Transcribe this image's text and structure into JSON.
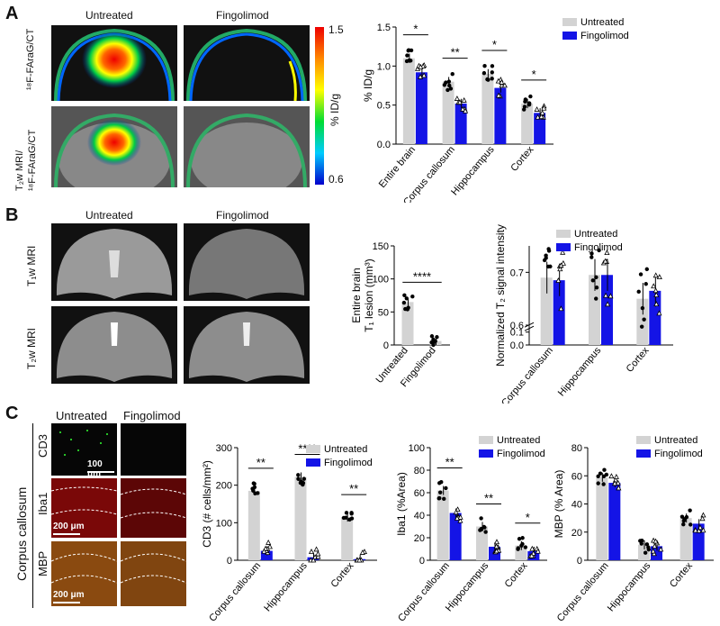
{
  "panels": {
    "a": "A",
    "b": "B",
    "c": "C"
  },
  "rowA": {
    "col_untreated": "Untreated",
    "col_fingolimod": "Fingolimod",
    "row1_label": "¹⁸F-FAraG/CT",
    "row2_label_1": "T₂w MRI/",
    "row2_label_2": "¹⁸F-FAraG/CT",
    "colorbar_max": "1.5",
    "colorbar_min": "0.6",
    "colorbar_unit": "% ID/g"
  },
  "rowB": {
    "col_untreated": "Untreated",
    "col_fingolimod": "Fingolimod",
    "row1_label": "T₁w MRI",
    "row2_label": "T₂w MRI"
  },
  "rowC": {
    "col_untreated": "Untreated",
    "col_fingolimod": "Fingolimod",
    "section_label": "Corpus callosum",
    "row1_label": "CD3",
    "row2_label": "Iba1",
    "row3_label": "MBP",
    "scale1": "100 μm",
    "scale2": "200 μm",
    "scale3": "200 μm"
  },
  "chart_data": [
    {
      "id": "A",
      "type": "bar",
      "categories": [
        "Entire brain",
        "Corpus callosum",
        "Hippocampus",
        "Cortex"
      ],
      "series": [
        {
          "name": "Untreated",
          "values": [
            1.1,
            0.8,
            0.9,
            0.52
          ],
          "color": "#d3d3d3"
        },
        {
          "name": "Fingolimod",
          "values": [
            0.92,
            0.52,
            0.72,
            0.4
          ],
          "color": "#1414e6"
        }
      ],
      "ylabel": "% ID/g",
      "ylim": [
        0,
        1.5
      ],
      "yticks": [
        "0.0",
        "0.5",
        "1.0",
        "1.5"
      ],
      "significance": [
        "*",
        "**",
        "*",
        "*"
      ],
      "legend": "top-right"
    },
    {
      "id": "B1",
      "type": "bar",
      "categories": [
        "Untreated",
        "Fingolimod"
      ],
      "series": [
        {
          "name": "",
          "values": [
            65,
            6
          ],
          "color": "#d3d3d3"
        }
      ],
      "ylabel_1": "Entire brain",
      "ylabel_2": "T₁ lesion (mm³)",
      "ylim": [
        0,
        150
      ],
      "yticks": [
        "0",
        "50",
        "100",
        "150"
      ],
      "significance": [
        "****"
      ]
    },
    {
      "id": "B2",
      "type": "bar",
      "categories": [
        "Corpus callosum",
        "Hippocampus",
        "Cortex"
      ],
      "series": [
        {
          "name": "Untreated",
          "values": [
            0.69,
            0.695,
            0.65
          ],
          "color": "#d3d3d3"
        },
        {
          "name": "Fingolimod",
          "values": [
            0.685,
            0.695,
            0.665
          ],
          "color": "#1414e6"
        }
      ],
      "ylabel": "Normalized T₂ signal intensity",
      "ylim": [
        0,
        0.75
      ],
      "yticks": [
        "0.0",
        "0.1",
        "0.6",
        "0.7"
      ],
      "legend": "top-right"
    },
    {
      "id": "C1",
      "type": "bar",
      "categories": [
        "Corpus callosum",
        "Hippocampus",
        "Cortex"
      ],
      "series": [
        {
          "name": "Untreated",
          "values": [
            185,
            222,
            115
          ],
          "color": "#d3d3d3"
        },
        {
          "name": "Fingolimod",
          "values": [
            25,
            8,
            3
          ],
          "color": "#1414e6"
        }
      ],
      "ylabel": "CD3 (# cells/mm²)",
      "ylim": [
        0,
        300
      ],
      "yticks": [
        "0",
        "100",
        "200",
        "300"
      ],
      "significance": [
        "**",
        "****",
        "**"
      ],
      "legend": "top-right"
    },
    {
      "id": "C2",
      "type": "bar",
      "categories": [
        "Corpus callosum",
        "Hippocampus",
        "Cortex"
      ],
      "series": [
        {
          "name": "Untreated",
          "values": [
            62,
            30,
            13
          ],
          "color": "#d3d3d3"
        },
        {
          "name": "Fingolimod",
          "values": [
            42,
            12,
            8
          ],
          "color": "#1414e6"
        }
      ],
      "ylabel": "Iba1 (%Area)",
      "ylim": [
        0,
        100
      ],
      "yticks": [
        "0",
        "20",
        "40",
        "60",
        "80",
        "100"
      ],
      "significance": [
        "**",
        "**",
        "*"
      ],
      "legend": "top-right"
    },
    {
      "id": "C3",
      "type": "bar",
      "categories": [
        "Corpus callosum",
        "Hippocampus",
        "Cortex"
      ],
      "series": [
        {
          "name": "Untreated",
          "values": [
            59,
            11,
            30
          ],
          "color": "#d3d3d3"
        },
        {
          "name": "Fingolimod",
          "values": [
            55,
            10,
            26
          ],
          "color": "#1414e6"
        }
      ],
      "ylabel": "MBP (% Area)",
      "ylim": [
        0,
        80
      ],
      "yticks": [
        "0",
        "20",
        "40",
        "60",
        "80"
      ],
      "legend": "top-right"
    }
  ]
}
